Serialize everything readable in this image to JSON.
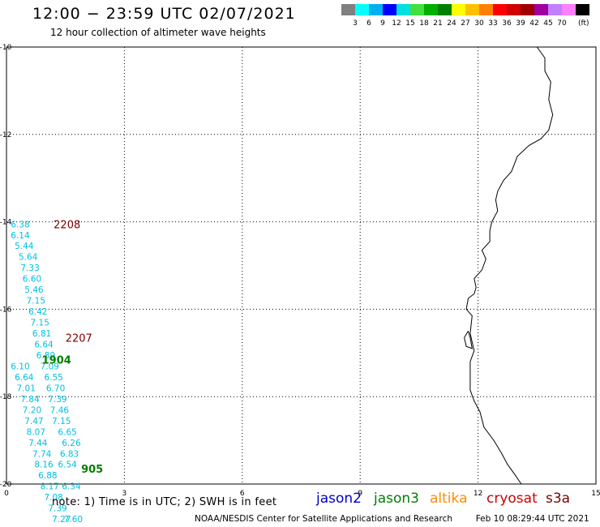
{
  "title": "12:00 − 23:59 UTC 02/07/2021",
  "subtitle": "12 hour collection of altimeter wave heights",
  "colorbar": {
    "colors": [
      "#808080",
      "#00ffff",
      "#00b0f0",
      "#0000ff",
      "#00e0e0",
      "#40e040",
      "#00b000",
      "#008000",
      "#ffff00",
      "#ffc000",
      "#ff8000",
      "#ff0000",
      "#d00000",
      "#a00000",
      "#a000a0",
      "#c080ff",
      "#ff80ff",
      "#000000"
    ],
    "labels": [
      "3",
      "6",
      "9",
      "12",
      "15",
      "18",
      "21",
      "24",
      "27",
      "30",
      "33",
      "36",
      "39",
      "42",
      "45",
      "70"
    ],
    "unit": "(ft)"
  },
  "chart_data": {
    "type": "scatter",
    "xlim": [
      0,
      15
    ],
    "ylim": [
      -20,
      -10
    ],
    "x_ticks": [
      "0",
      "3",
      "6",
      "9",
      "12",
      "15"
    ],
    "y_ticks": [
      "-10",
      "-12",
      "-14",
      "-16",
      "-18",
      "-20"
    ],
    "grid": true,
    "passes": [
      {
        "label": "2208",
        "color": "#800000",
        "x": 1.2,
        "y": -14.05
      },
      {
        "label": "2207",
        "color": "#800000",
        "x": 1.5,
        "y": -16.65
      },
      {
        "label": "1904",
        "color": "#008000",
        "x": 0.9,
        "y": -17.15
      },
      {
        "label": "905",
        "color": "#008000",
        "x": 1.9,
        "y": -19.65
      }
    ],
    "wave_heights": [
      {
        "v": "6.38",
        "x": 0.35,
        "y": -14.05,
        "color": "#00c0e0"
      },
      {
        "v": "6.14",
        "x": 0.35,
        "y": -14.3,
        "color": "#00c0e0"
      },
      {
        "v": "5.44",
        "x": 0.45,
        "y": -14.55,
        "color": "#00c0e0"
      },
      {
        "v": "5.64",
        "x": 0.55,
        "y": -14.8,
        "color": "#00c0e0"
      },
      {
        "v": "7.33",
        "x": 0.6,
        "y": -15.05,
        "color": "#00c0e0"
      },
      {
        "v": "6.60",
        "x": 0.65,
        "y": -15.3,
        "color": "#00c0e0"
      },
      {
        "v": "5.46",
        "x": 0.7,
        "y": -15.55,
        "color": "#00c0e0"
      },
      {
        "v": "7.15",
        "x": 0.75,
        "y": -15.8,
        "color": "#00c0e0"
      },
      {
        "v": "6.42",
        "x": 0.8,
        "y": -16.05,
        "color": "#00c0e0"
      },
      {
        "v": "7.15",
        "x": 0.85,
        "y": -16.3,
        "color": "#00c0e0"
      },
      {
        "v": "6.81",
        "x": 0.9,
        "y": -16.55,
        "color": "#00c0e0"
      },
      {
        "v": "6.64",
        "x": 0.95,
        "y": -16.8,
        "color": "#00c0e0"
      },
      {
        "v": "6.89",
        "x": 1.0,
        "y": -17.05,
        "color": "#00c0e0"
      },
      {
        "v": "6.10",
        "x": 0.35,
        "y": -17.3,
        "color": "#00c0e0"
      },
      {
        "v": "6.64",
        "x": 0.45,
        "y": -17.55,
        "color": "#00c0e0"
      },
      {
        "v": "7.01",
        "x": 0.5,
        "y": -17.8,
        "color": "#00c0e0"
      },
      {
        "v": "7.84",
        "x": 0.6,
        "y": -18.05,
        "color": "#00c0e0"
      },
      {
        "v": "7.20",
        "x": 0.65,
        "y": -18.3,
        "color": "#00c0e0"
      },
      {
        "v": "7.47",
        "x": 0.7,
        "y": -18.55,
        "color": "#00c0e0"
      },
      {
        "v": "8.07",
        "x": 0.75,
        "y": -18.8,
        "color": "#00c0e0"
      },
      {
        "v": "7.44",
        "x": 0.8,
        "y": -19.05,
        "color": "#00c0e0"
      },
      {
        "v": "7.74",
        "x": 0.9,
        "y": -19.3,
        "color": "#00c0e0"
      },
      {
        "v": "8.16",
        "x": 0.95,
        "y": -19.55,
        "color": "#00c0e0"
      },
      {
        "v": "6.88",
        "x": 1.05,
        "y": -19.8,
        "color": "#00c0e0"
      },
      {
        "v": "8.17",
        "x": 1.1,
        "y": -20.05,
        "color": "#00c0e0"
      },
      {
        "v": "7.08",
        "x": 1.2,
        "y": -20.3,
        "color": "#00c0e0"
      },
      {
        "v": "7.39",
        "x": 1.3,
        "y": -20.55,
        "color": "#00c0e0"
      },
      {
        "v": "7.27",
        "x": 1.4,
        "y": -20.8,
        "color": "#00c0e0"
      },
      {
        "v": "7.60",
        "x": 1.7,
        "y": -20.8,
        "color": "#00c0e0"
      },
      {
        "v": "7.09",
        "x": 1.1,
        "y": -17.3,
        "color": "#00c0e0"
      },
      {
        "v": "6.55",
        "x": 1.2,
        "y": -17.55,
        "color": "#00c0e0"
      },
      {
        "v": "6.70",
        "x": 1.25,
        "y": -17.8,
        "color": "#00c0e0"
      },
      {
        "v": "7.39",
        "x": 1.3,
        "y": -18.05,
        "color": "#00c0e0"
      },
      {
        "v": "7.46",
        "x": 1.35,
        "y": -18.3,
        "color": "#00c0e0"
      },
      {
        "v": "7.15",
        "x": 1.4,
        "y": -18.55,
        "color": "#00c0e0"
      },
      {
        "v": "6.65",
        "x": 1.55,
        "y": -18.8,
        "color": "#00c0e0"
      },
      {
        "v": "6.26",
        "x": 1.65,
        "y": -19.05,
        "color": "#00c0e0"
      },
      {
        "v": "6.83",
        "x": 1.6,
        "y": -19.3,
        "color": "#00c0e0"
      },
      {
        "v": "6.54",
        "x": 1.55,
        "y": -19.55,
        "color": "#00c0e0"
      },
      {
        "v": "6.34",
        "x": 1.65,
        "y": -20.05,
        "color": "#00c0e0"
      }
    ],
    "coastline": [
      [
        13.5,
        -10.0
      ],
      [
        13.7,
        -10.25
      ],
      [
        13.7,
        -10.55
      ],
      [
        13.85,
        -10.8
      ],
      [
        13.8,
        -11.2
      ],
      [
        13.9,
        -11.55
      ],
      [
        13.8,
        -11.9
      ],
      [
        13.6,
        -12.1
      ],
      [
        13.3,
        -12.25
      ],
      [
        13.0,
        -12.5
      ],
      [
        12.85,
        -12.85
      ],
      [
        12.65,
        -13.05
      ],
      [
        12.5,
        -13.3
      ],
      [
        12.45,
        -13.5
      ],
      [
        12.5,
        -13.75
      ],
      [
        12.35,
        -14.0
      ],
      [
        12.3,
        -14.2
      ],
      [
        12.3,
        -14.45
      ],
      [
        12.1,
        -14.65
      ],
      [
        12.2,
        -14.85
      ],
      [
        12.1,
        -15.1
      ],
      [
        11.9,
        -15.3
      ],
      [
        11.95,
        -15.5
      ],
      [
        11.9,
        -15.65
      ],
      [
        11.75,
        -15.75
      ],
      [
        11.7,
        -16.0
      ],
      [
        11.85,
        -16.15
      ],
      [
        11.8,
        -16.55
      ],
      [
        11.85,
        -16.75
      ],
      [
        11.9,
        -16.95
      ],
      [
        11.8,
        -17.2
      ],
      [
        11.8,
        -17.55
      ],
      [
        11.8,
        -17.85
      ],
      [
        11.9,
        -18.1
      ],
      [
        12.05,
        -18.35
      ],
      [
        12.15,
        -18.7
      ],
      [
        12.4,
        -19.0
      ],
      [
        12.6,
        -19.3
      ],
      [
        12.75,
        -19.55
      ],
      [
        12.95,
        -19.8
      ],
      [
        13.1,
        -20.0
      ]
    ],
    "island": [
      [
        11.75,
        -16.5
      ],
      [
        11.65,
        -16.65
      ],
      [
        11.7,
        -16.85
      ],
      [
        11.85,
        -16.9
      ],
      [
        11.8,
        -16.65
      ],
      [
        11.75,
        -16.5
      ]
    ]
  },
  "footer": {
    "note": "note:  1) Time is in UTC;  2) SWH is in feet",
    "missions": [
      {
        "name": "jason2",
        "color": "#0000cc"
      },
      {
        "name": "jason3",
        "color": "#008000"
      },
      {
        "name": "altika",
        "color": "#ff8c00"
      },
      {
        "name": "cryosat",
        "color": "#cc0000"
      },
      {
        "name": "s3a",
        "color": "#800000"
      }
    ],
    "credit": "NOAA/NESDIS Center for Satellite Applications and Research",
    "timestamp": "Feb 10 08:29:44 UTC 2021"
  }
}
